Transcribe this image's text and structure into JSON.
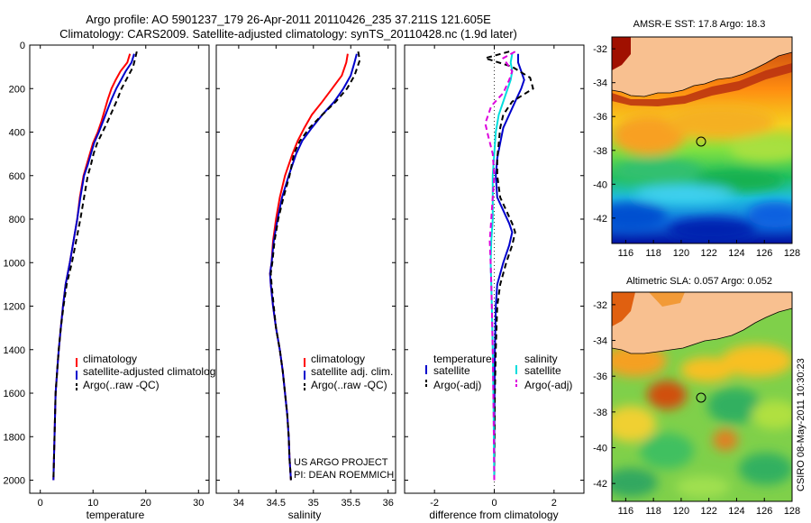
{
  "header": {
    "line1": "Argo profile: AO 5901237_179 26-Apr-2011 20110426_235 37.211S 121.605E",
    "line2": "Climatology: CARS2009. Satellite-adjusted climatology: synTS_20110428.nc (1.9d later)"
  },
  "colors": {
    "climatology": "#ff0000",
    "satellite": "#0000cc",
    "argo": "#000000",
    "satellite_diff_salinity": "#00dddd",
    "argo_diff_salinity": "#dd00dd",
    "land": "#f8c090"
  },
  "chart_data": [
    {
      "type": "line",
      "id": "temperature",
      "xlabel": "temperature",
      "ylabel": "",
      "xlim": [
        -2,
        32
      ],
      "ylim": [
        0,
        2060
      ],
      "y_reversed": true,
      "xticks": [
        "0",
        "10",
        "20",
        "30"
      ],
      "xtick_values": [
        0,
        10,
        20,
        30
      ],
      "yticks": [
        "0",
        "200",
        "400",
        "600",
        "800",
        "1000",
        "1200",
        "1400",
        "1600",
        "1800",
        "2000"
      ],
      "ytick_values": [
        0,
        200,
        400,
        600,
        800,
        1000,
        1200,
        1400,
        1600,
        1800,
        2000
      ],
      "series": [
        {
          "name": "climatology",
          "color": "#ff0000",
          "dash": "",
          "x": [
            17.0,
            16.5,
            15.2,
            14.3,
            13.5,
            12.8,
            12.2,
            11.6,
            10.9,
            10.0,
            9.4,
            8.8,
            8.2,
            7.5,
            7.0,
            6.3,
            5.6,
            4.8,
            4.3,
            3.9,
            3.5,
            3.2,
            2.9,
            2.8,
            2.7,
            2.6,
            2.5
          ],
          "y": [
            40,
            80,
            120,
            160,
            200,
            250,
            300,
            350,
            400,
            450,
            500,
            550,
            600,
            700,
            800,
            900,
            1000,
            1100,
            1200,
            1300,
            1400,
            1500,
            1600,
            1700,
            1800,
            1900,
            2000
          ]
        },
        {
          "name": "satellite-adjusted climatology",
          "color": "#0000cc",
          "dash": "",
          "x": [
            17.8,
            17.3,
            16.2,
            15.3,
            14.4,
            13.5,
            12.7,
            11.9,
            11.1,
            10.2,
            9.6,
            9.0,
            8.3,
            7.6,
            7.0,
            6.3,
            5.6,
            4.8,
            4.3,
            3.9,
            3.5,
            3.2,
            2.9,
            2.8,
            2.7,
            2.6,
            2.5
          ],
          "y": [
            40,
            80,
            120,
            160,
            200,
            250,
            300,
            350,
            400,
            450,
            500,
            550,
            600,
            700,
            800,
            900,
            1000,
            1100,
            1200,
            1300,
            1400,
            1500,
            1600,
            1700,
            1800,
            1900,
            2000
          ]
        },
        {
          "name": "Argo(..raw -QC)",
          "color": "#000000",
          "dash": "6,4",
          "x": [
            18.3,
            18.0,
            17.6,
            16.5,
            15.4,
            14.6,
            13.7,
            12.8,
            11.8,
            10.8,
            10.1,
            9.6,
            9.0,
            8.3,
            7.6,
            6.8,
            6.0,
            5.0,
            4.4,
            3.9,
            3.5,
            3.2,
            2.9,
            2.8,
            2.7,
            2.6,
            2.5
          ],
          "y": [
            30,
            60,
            100,
            150,
            200,
            250,
            300,
            350,
            400,
            450,
            500,
            550,
            600,
            700,
            800,
            900,
            1000,
            1100,
            1200,
            1300,
            1400,
            1500,
            1600,
            1700,
            1800,
            1900,
            2000
          ]
        }
      ],
      "legend": [
        "climatology",
        "satellite-adjusted climatology",
        "Argo(..raw -QC)"
      ]
    },
    {
      "type": "line",
      "id": "salinity",
      "xlabel": "salinity",
      "xlim": [
        33.7,
        36.1
      ],
      "ylim": [
        0,
        2060
      ],
      "y_reversed": true,
      "xticks": [
        "34",
        "34.5",
        "35",
        "35.5",
        "36"
      ],
      "xtick_values": [
        34,
        34.5,
        35,
        35.5,
        36
      ],
      "series": [
        {
          "name": "climatology",
          "color": "#ff0000",
          "dash": "",
          "x": [
            35.46,
            35.44,
            35.38,
            35.25,
            35.12,
            34.98,
            34.88,
            34.79,
            34.72,
            34.62,
            34.55,
            34.5,
            34.46,
            34.44,
            34.42,
            34.43,
            34.46,
            34.5,
            34.55,
            34.59,
            34.62,
            34.65,
            34.67,
            34.68,
            34.69,
            34.7
          ],
          "y": [
            40,
            80,
            140,
            200,
            260,
            320,
            380,
            440,
            500,
            600,
            700,
            800,
            900,
            1000,
            1050,
            1100,
            1200,
            1300,
            1400,
            1500,
            1600,
            1700,
            1800,
            1900,
            1950,
            2000
          ]
        },
        {
          "name": "satellite adj. clim.",
          "color": "#0000cc",
          "dash": "",
          "x": [
            35.58,
            35.55,
            35.5,
            35.4,
            35.28,
            35.12,
            34.98,
            34.85,
            34.77,
            34.67,
            34.58,
            34.52,
            34.47,
            34.44,
            34.42,
            34.43,
            34.46,
            34.5,
            34.55,
            34.59,
            34.62,
            34.65,
            34.67,
            34.68,
            34.69,
            34.7
          ],
          "y": [
            40,
            80,
            140,
            200,
            260,
            320,
            380,
            440,
            500,
            600,
            700,
            800,
            900,
            1000,
            1050,
            1100,
            1200,
            1300,
            1400,
            1500,
            1600,
            1700,
            1800,
            1900,
            1950,
            2000
          ]
        },
        {
          "name": "Argo(..raw -QC)",
          "color": "#000000",
          "dash": "6,4",
          "x": [
            35.6,
            35.62,
            35.55,
            35.45,
            35.3,
            35.12,
            34.95,
            34.82,
            34.74,
            34.68,
            34.6,
            34.53,
            34.48,
            34.45,
            34.43,
            34.44,
            34.47,
            34.5,
            34.55,
            34.59,
            34.62,
            34.65,
            34.67,
            34.68,
            34.69,
            34.7
          ],
          "y": [
            30,
            70,
            140,
            200,
            260,
            320,
            380,
            440,
            500,
            600,
            700,
            800,
            900,
            1000,
            1050,
            1100,
            1200,
            1300,
            1400,
            1500,
            1600,
            1700,
            1800,
            1900,
            1950,
            2000
          ]
        }
      ],
      "legend": [
        "climatology",
        "satellite adj. clim.",
        "Argo(..raw -QC)"
      ],
      "credit": [
        "US ARGO PROJECT",
        "PI: DEAN ROEMMICH"
      ]
    },
    {
      "type": "line",
      "id": "difference",
      "xlabel": "difference from climatology",
      "xlim": [
        -3,
        3
      ],
      "ylim": [
        0,
        2060
      ],
      "y_reversed": true,
      "xticks": [
        "-2",
        "0",
        "2"
      ],
      "xtick_values": [
        -2,
        0,
        2
      ],
      "zero_line": true,
      "series": [
        {
          "name": "temperature satellite",
          "color": "#0000cc",
          "dash": "",
          "x": [
            0.8,
            0.8,
            0.9,
            1.0,
            0.9,
            0.7,
            0.5,
            0.3,
            0.2,
            0.1,
            0.05,
            0.1,
            0.3,
            0.5,
            0.6,
            0.5,
            0.3,
            0.1,
            0.05,
            0.02,
            0.01,
            0.0,
            0.0
          ],
          "y": [
            40,
            80,
            120,
            160,
            200,
            260,
            320,
            380,
            450,
            520,
            600,
            700,
            760,
            820,
            860,
            920,
            1000,
            1100,
            1200,
            1400,
            1600,
            1800,
            2000
          ]
        },
        {
          "name": "temperature Argo(-adj)",
          "color": "#000000",
          "dash": "6,4",
          "x": [
            0.5,
            -0.3,
            0.6,
            1.2,
            1.3,
            0.6,
            0.3,
            0.2,
            0.15,
            0.1,
            0.1,
            0.2,
            0.4,
            0.6,
            0.7,
            0.6,
            0.4,
            0.2,
            0.1,
            0.05,
            0.02,
            0.01,
            0.0
          ],
          "y": [
            30,
            60,
            100,
            150,
            200,
            260,
            320,
            380,
            450,
            520,
            600,
            700,
            760,
            820,
            860,
            920,
            1000,
            1100,
            1200,
            1400,
            1600,
            1800,
            2000
          ]
        },
        {
          "name": "salinity satellite",
          "color": "#00dddd",
          "dash": "",
          "x": [
            0.6,
            0.55,
            0.6,
            0.55,
            0.45,
            0.3,
            0.15,
            0.05,
            0.0,
            -0.05,
            -0.05,
            -0.05,
            -0.1,
            -0.12,
            -0.1,
            -0.08,
            -0.05,
            -0.02,
            0.0
          ],
          "y": [
            40,
            80,
            120,
            160,
            200,
            260,
            320,
            400,
            500,
            600,
            700,
            800,
            900,
            1000,
            1100,
            1200,
            1400,
            1700,
            2000
          ]
        },
        {
          "name": "salinity Argo(-adj)",
          "color": "#dd00dd",
          "dash": "6,4",
          "x": [
            0.7,
            0.3,
            0.6,
            0.5,
            0.3,
            -0.1,
            -0.3,
            -0.2,
            -0.05,
            0.0,
            -0.05,
            -0.1,
            -0.15,
            -0.12,
            -0.1,
            -0.08,
            -0.05,
            -0.02,
            0.0
          ],
          "y": [
            30,
            60,
            120,
            160,
            220,
            280,
            360,
            420,
            500,
            600,
            700,
            800,
            900,
            1000,
            1100,
            1200,
            1400,
            1700,
            2000
          ]
        }
      ],
      "legend_headers": [
        "temperature",
        "salinity"
      ],
      "legend_left": [
        "satellite",
        "Argo(-adj)"
      ],
      "legend_right": [
        "satellite",
        "Argo(-adj)"
      ]
    },
    {
      "type": "heatmap",
      "id": "sst-map",
      "title": "AMSR-E SST: 17.8 Argo: 18.3",
      "xlim": [
        115,
        128
      ],
      "ylim": [
        -43.5,
        -31.3
      ],
      "xticks": [
        "116",
        "118",
        "120",
        "122",
        "124",
        "126",
        "128"
      ],
      "xtick_values": [
        116,
        118,
        120,
        122,
        124,
        126,
        128
      ],
      "yticks": [
        "-32",
        "-34",
        "-36",
        "-38",
        "-40",
        "-42"
      ],
      "ytick_values": [
        -32,
        -34,
        -36,
        -38,
        -40,
        -42
      ],
      "profile_location": {
        "lon": 121.605,
        "lat": -37.211
      }
    },
    {
      "type": "heatmap",
      "id": "sla-map",
      "title": "Altimetric SLA: 0.057 Argo: 0.052",
      "xlim": [
        115,
        128
      ],
      "ylim": [
        -43,
        -31.3
      ],
      "xticks": [
        "116",
        "118",
        "120",
        "122",
        "124",
        "126",
        "128"
      ],
      "xtick_values": [
        116,
        118,
        120,
        122,
        124,
        126,
        128
      ],
      "yticks": [
        "-32",
        "-34",
        "-36",
        "-38",
        "-40",
        "-42"
      ],
      "ytick_values": [
        -32,
        -34,
        -36,
        -38,
        -40,
        -42
      ],
      "profile_location": {
        "lon": 121.605,
        "lat": -37.211
      }
    }
  ],
  "footer": {
    "timestamp": "CSIRO 08-May-2011 10:30:23"
  }
}
